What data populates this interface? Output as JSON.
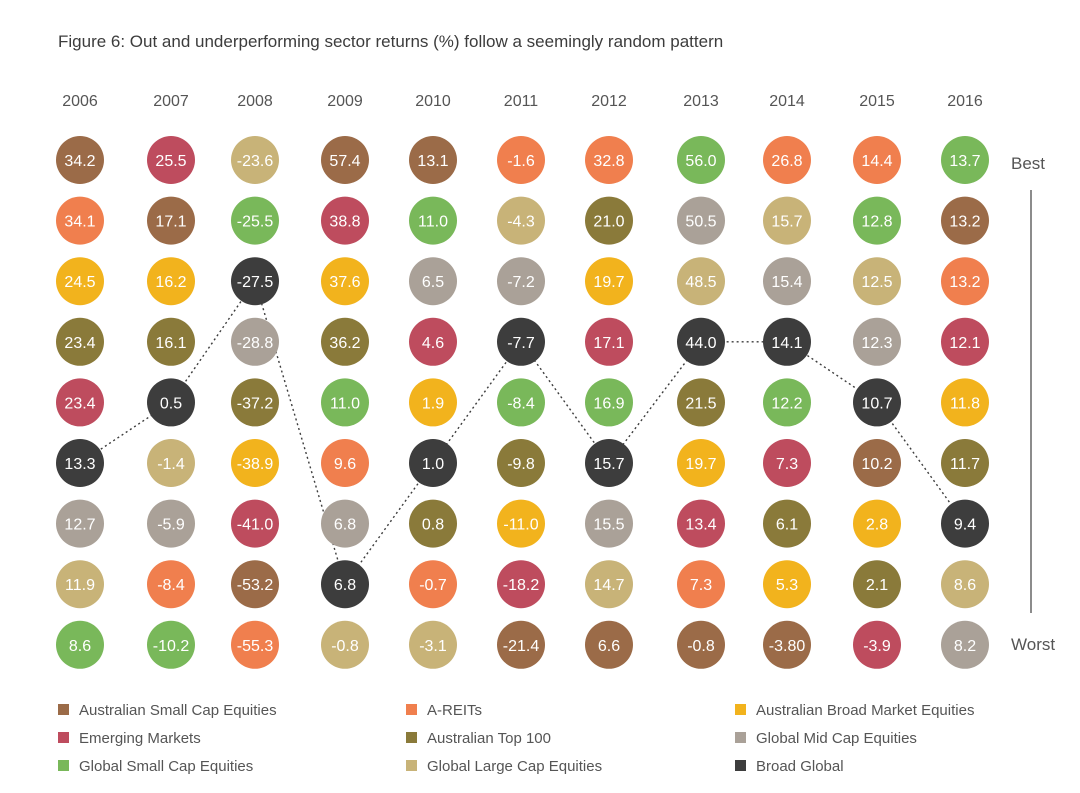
{
  "chart_data": {
    "type": "table",
    "title": "Figure 6: Out and underperforming sector returns (%) follow a seemingly random pattern",
    "years": [
      "2006",
      "2007",
      "2008",
      "2009",
      "2010",
      "2011",
      "2012",
      "2013",
      "2014",
      "2015",
      "2016"
    ],
    "rank_labels": {
      "best": "Best",
      "worst": "Worst"
    },
    "highlight_series": "Broad Global",
    "sectors": [
      {
        "name": "Australian Small Cap Equities",
        "color": "#9b6b48"
      },
      {
        "name": "A-REITs",
        "color": "#f07f4e"
      },
      {
        "name": "Australian Broad Market Equities",
        "color": "#f2b31d"
      },
      {
        "name": "Emerging Markets",
        "color": "#be4c5e"
      },
      {
        "name": "Australian Top 100",
        "color": "#8a7a3a"
      },
      {
        "name": "Global Mid Cap Equities",
        "color": "#aaa198"
      },
      {
        "name": "Global Small Cap Equities",
        "color": "#79b85a"
      },
      {
        "name": "Global Large Cap Equities",
        "color": "#c8b378"
      },
      {
        "name": "Broad Global",
        "color": "#3d3d3d"
      }
    ],
    "columns": [
      {
        "year": "2006",
        "cells": [
          {
            "value": "34.2",
            "sector": "Australian Small Cap Equities"
          },
          {
            "value": "34.1",
            "sector": "A-REITs"
          },
          {
            "value": "24.5",
            "sector": "Australian Broad Market Equities"
          },
          {
            "value": "23.4",
            "sector": "Australian Top 100"
          },
          {
            "value": "23.4",
            "sector": "Emerging Markets"
          },
          {
            "value": "13.3",
            "sector": "Broad Global"
          },
          {
            "value": "12.7",
            "sector": "Global Mid Cap Equities"
          },
          {
            "value": "11.9",
            "sector": "Global Large Cap Equities"
          },
          {
            "value": "8.6",
            "sector": "Global Small Cap Equities"
          }
        ]
      },
      {
        "year": "2007",
        "cells": [
          {
            "value": "25.5",
            "sector": "Emerging Markets"
          },
          {
            "value": "17.1",
            "sector": "Australian Small Cap Equities"
          },
          {
            "value": "16.2",
            "sector": "Australian Broad Market Equities"
          },
          {
            "value": "16.1",
            "sector": "Australian Top 100"
          },
          {
            "value": "0.5",
            "sector": "Broad Global"
          },
          {
            "value": "-1.4",
            "sector": "Global Large Cap Equities"
          },
          {
            "value": "-5.9",
            "sector": "Global Mid Cap Equities"
          },
          {
            "value": "-8.4",
            "sector": "A-REITs"
          },
          {
            "value": "-10.2",
            "sector": "Global Small Cap Equities"
          }
        ]
      },
      {
        "year": "2008",
        "cells": [
          {
            "value": "-23.6",
            "sector": "Global Large Cap Equities"
          },
          {
            "value": "-25.5",
            "sector": "Global Small Cap Equities"
          },
          {
            "value": "-27.5",
            "sector": "Broad Global"
          },
          {
            "value": "-28.8",
            "sector": "Global Mid Cap Equities"
          },
          {
            "value": "-37.2",
            "sector": "Australian Top 100"
          },
          {
            "value": "-38.9",
            "sector": "Australian Broad Market Equities"
          },
          {
            "value": "-41.0",
            "sector": "Emerging Markets"
          },
          {
            "value": "-53.2",
            "sector": "Australian Small Cap Equities"
          },
          {
            "value": "-55.3",
            "sector": "A-REITs"
          }
        ]
      },
      {
        "year": "2009",
        "cells": [
          {
            "value": "57.4",
            "sector": "Australian Small Cap Equities"
          },
          {
            "value": "38.8",
            "sector": "Emerging Markets"
          },
          {
            "value": "37.6",
            "sector": "Australian Broad Market Equities"
          },
          {
            "value": "36.2",
            "sector": "Australian Top 100"
          },
          {
            "value": "11.0",
            "sector": "Global Small Cap Equities"
          },
          {
            "value": "9.6",
            "sector": "A-REITs"
          },
          {
            "value": "6.8",
            "sector": "Global Mid Cap Equities"
          },
          {
            "value": "6.8",
            "sector": "Broad Global"
          },
          {
            "value": "-0.8",
            "sector": "Global Large Cap Equities"
          }
        ]
      },
      {
        "year": "2010",
        "cells": [
          {
            "value": "13.1",
            "sector": "Australian Small Cap Equities"
          },
          {
            "value": "11.0",
            "sector": "Global Small Cap Equities"
          },
          {
            "value": "6.5",
            "sector": "Global Mid Cap Equities"
          },
          {
            "value": "4.6",
            "sector": "Emerging Markets"
          },
          {
            "value": "1.9",
            "sector": "Australian Broad Market Equities"
          },
          {
            "value": "1.0",
            "sector": "Broad Global"
          },
          {
            "value": "0.8",
            "sector": "Australian Top 100"
          },
          {
            "value": "-0.7",
            "sector": "A-REITs"
          },
          {
            "value": "-3.1",
            "sector": "Global Large Cap Equities"
          }
        ]
      },
      {
        "year": "2011",
        "cells": [
          {
            "value": "-1.6",
            "sector": "A-REITs"
          },
          {
            "value": "-4.3",
            "sector": "Global Large Cap Equities"
          },
          {
            "value": "-7.2",
            "sector": "Global Mid Cap Equities"
          },
          {
            "value": "-7.7",
            "sector": "Broad Global"
          },
          {
            "value": "-8.4",
            "sector": "Global Small Cap Equities"
          },
          {
            "value": "-9.8",
            "sector": "Australian Top 100"
          },
          {
            "value": "-11.0",
            "sector": "Australian Broad Market Equities"
          },
          {
            "value": "-18.2",
            "sector": "Emerging Markets"
          },
          {
            "value": "-21.4",
            "sector": "Australian Small Cap Equities"
          }
        ]
      },
      {
        "year": "2012",
        "cells": [
          {
            "value": "32.8",
            "sector": "A-REITs"
          },
          {
            "value": "21.0",
            "sector": "Australian Top 100"
          },
          {
            "value": "19.7",
            "sector": "Australian Broad Market Equities"
          },
          {
            "value": "17.1",
            "sector": "Emerging Markets"
          },
          {
            "value": "16.9",
            "sector": "Global Small Cap Equities"
          },
          {
            "value": "15.7",
            "sector": "Broad Global"
          },
          {
            "value": "15.5",
            "sector": "Global Mid Cap Equities"
          },
          {
            "value": "14.7",
            "sector": "Global Large Cap Equities"
          },
          {
            "value": "6.6",
            "sector": "Australian Small Cap Equities"
          }
        ]
      },
      {
        "year": "2013",
        "cells": [
          {
            "value": "56.0",
            "sector": "Global Small Cap Equities"
          },
          {
            "value": "50.5",
            "sector": "Global Mid Cap Equities"
          },
          {
            "value": "48.5",
            "sector": "Global Large Cap Equities"
          },
          {
            "value": "44.0",
            "sector": "Broad Global"
          },
          {
            "value": "21.5",
            "sector": "Australian Top 100"
          },
          {
            "value": "19.7",
            "sector": "Australian Broad Market Equities"
          },
          {
            "value": "13.4",
            "sector": "Emerging Markets"
          },
          {
            "value": "7.3",
            "sector": "A-REITs"
          },
          {
            "value": "-0.8",
            "sector": "Australian Small Cap Equities"
          }
        ]
      },
      {
        "year": "2014",
        "cells": [
          {
            "value": "26.8",
            "sector": "A-REITs"
          },
          {
            "value": "15.7",
            "sector": "Global Large Cap Equities"
          },
          {
            "value": "15.4",
            "sector": "Global Mid Cap Equities"
          },
          {
            "value": "14.1",
            "sector": "Broad Global"
          },
          {
            "value": "12.2",
            "sector": "Global Small Cap Equities"
          },
          {
            "value": "7.3",
            "sector": "Emerging Markets"
          },
          {
            "value": "6.1",
            "sector": "Australian Top 100"
          },
          {
            "value": "5.3",
            "sector": "Australian Broad Market Equities"
          },
          {
            "value": "-3.80",
            "sector": "Australian Small Cap Equities"
          }
        ]
      },
      {
        "year": "2015",
        "cells": [
          {
            "value": "14.4",
            "sector": "A-REITs"
          },
          {
            "value": "12.8",
            "sector": "Global Small Cap Equities"
          },
          {
            "value": "12.5",
            "sector": "Global Large Cap Equities"
          },
          {
            "value": "12.3",
            "sector": "Global Mid Cap Equities"
          },
          {
            "value": "10.7",
            "sector": "Broad Global"
          },
          {
            "value": "10.2",
            "sector": "Australian Small Cap Equities"
          },
          {
            "value": "2.8",
            "sector": "Australian Broad Market Equities"
          },
          {
            "value": "2.1",
            "sector": "Australian Top 100"
          },
          {
            "value": "-3.9",
            "sector": "Emerging Markets"
          }
        ]
      },
      {
        "year": "2016",
        "cells": [
          {
            "value": "13.7",
            "sector": "Global Small Cap Equities"
          },
          {
            "value": "13.2",
            "sector": "Australian Small Cap Equities"
          },
          {
            "value": "13.2",
            "sector": "A-REITs"
          },
          {
            "value": "12.1",
            "sector": "Emerging Markets"
          },
          {
            "value": "11.8",
            "sector": "Australian Broad Market Equities"
          },
          {
            "value": "11.7",
            "sector": "Australian Top 100"
          },
          {
            "value": "9.4",
            "sector": "Broad Global"
          },
          {
            "value": "8.6",
            "sector": "Global Large Cap Equities"
          },
          {
            "value": "8.2",
            "sector": "Global Mid Cap Equities"
          }
        ]
      }
    ]
  }
}
